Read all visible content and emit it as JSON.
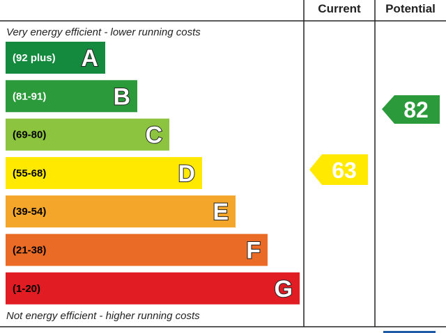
{
  "header": {
    "current": "Current",
    "potential": "Potential"
  },
  "top_note": "Very energy efficient - lower running costs",
  "bottom_note": "Not energy efficient - higher running costs",
  "bands": [
    {
      "range": "(92 plus)",
      "letter": "A",
      "color": "#138a3e",
      "text_color": "#ffffff"
    },
    {
      "range": "(81-91)",
      "letter": "B",
      "color": "#2b9a3a",
      "text_color": "#ffffff"
    },
    {
      "range": "(69-80)",
      "letter": "C",
      "color": "#8cc43f",
      "text_color": "#000000"
    },
    {
      "range": "(55-68)",
      "letter": "D",
      "color": "#ffe900",
      "text_color": "#000000"
    },
    {
      "range": "(39-54)",
      "letter": "E",
      "color": "#f4a62a",
      "text_color": "#000000"
    },
    {
      "range": "(21-38)",
      "letter": "F",
      "color": "#ea6b26",
      "text_color": "#000000"
    },
    {
      "range": "(1-20)",
      "letter": "G",
      "color": "#e21c23",
      "text_color": "#000000"
    }
  ],
  "current": {
    "value": 63,
    "color": "#ffe900"
  },
  "potential": {
    "value": 82,
    "color": "#2b9a3a"
  }
}
